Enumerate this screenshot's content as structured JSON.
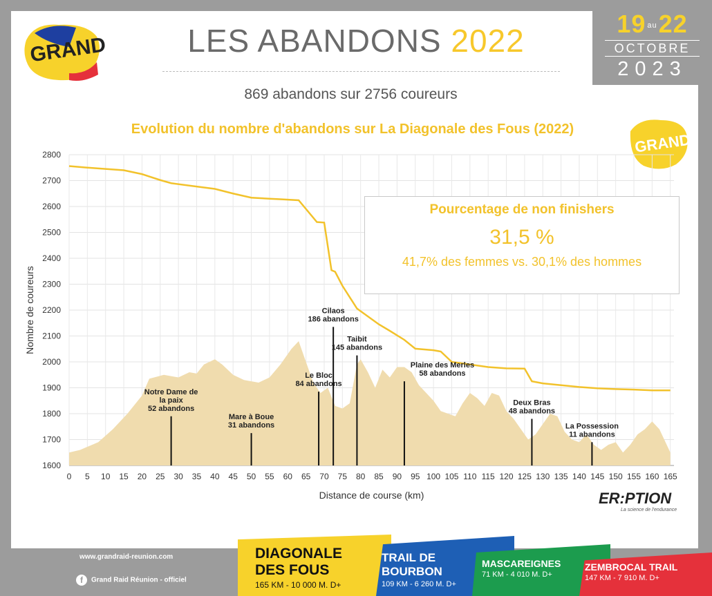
{
  "header": {
    "title_main": "LES ABANDONS",
    "title_year": "2022",
    "subtitle": "869 abandons sur 2756 coureurs",
    "logo_text": "GRAND RAID",
    "logo_small_text": "GRAND RAID",
    "date": {
      "day_start": "19",
      "au": "au",
      "day_end": "22",
      "month": "OCTOBRE",
      "year": "2023"
    }
  },
  "stats": {
    "title": "Pourcentage de non finishers",
    "value": "31,5 %",
    "detail": "41,7% des femmes  vs. 30,1% des hommes"
  },
  "chart_data": {
    "type": "line",
    "title": "Evolution du nombre d'abandons sur La Diagonale des Fous (2022)",
    "xlabel": "Distance de course (km)",
    "ylabel": "Nombre de coureurs",
    "xlim": [
      0,
      166
    ],
    "ylim": [
      1600,
      2800
    ],
    "x_ticks": [
      0,
      5,
      10,
      15,
      20,
      25,
      30,
      35,
      40,
      45,
      50,
      55,
      60,
      65,
      70,
      75,
      80,
      85,
      90,
      95,
      100,
      105,
      110,
      115,
      120,
      125,
      130,
      135,
      140,
      145,
      150,
      155,
      160,
      165
    ],
    "y_ticks": [
      1600,
      1700,
      1800,
      1900,
      2000,
      2100,
      2200,
      2300,
      2400,
      2500,
      2600,
      2700,
      2800
    ],
    "grid": true,
    "series": [
      {
        "x": [
          0,
          5,
          10,
          15,
          20,
          25,
          28,
          35,
          40,
          45,
          50,
          55,
          58,
          63,
          68,
          70,
          72,
          73,
          75,
          79,
          85,
          88,
          92,
          95,
          100,
          102,
          105,
          110,
          115,
          120,
          125,
          127,
          130,
          135,
          140,
          145,
          150,
          155,
          160,
          165
        ],
        "y": [
          2756,
          2750,
          2745,
          2740,
          2725,
          2702,
          2690,
          2677,
          2668,
          2650,
          2634,
          2630,
          2628,
          2624,
          2540,
          2538,
          2354,
          2348,
          2294,
          2206,
          2145,
          2120,
          2085,
          2051,
          2045,
          2040,
          2000,
          1990,
          1980,
          1975,
          1974,
          1925,
          1917,
          1910,
          1903,
          1898,
          1895,
          1893,
          1890,
          1890
        ],
        "color": "#f2c22b"
      },
      {
        "x": [
          0,
          3,
          8,
          12,
          16,
          20,
          22,
          26,
          30,
          33,
          35,
          37,
          40,
          42,
          45,
          48,
          52,
          55,
          58,
          61,
          63,
          65,
          67,
          69,
          71,
          73,
          75,
          77,
          79,
          80,
          82,
          84,
          86,
          88,
          90,
          92,
          94,
          96,
          98,
          100,
          102,
          104,
          106,
          108,
          110,
          112,
          114,
          116,
          118,
          120,
          122,
          124,
          126,
          128,
          130,
          132,
          134,
          136,
          138,
          140,
          142,
          144,
          146,
          148,
          150,
          152,
          154,
          156,
          158,
          160,
          162,
          165
        ],
        "y": [
          1650,
          1660,
          1690,
          1740,
          1800,
          1870,
          1935,
          1950,
          1940,
          1960,
          1955,
          1990,
          2010,
          1990,
          1950,
          1930,
          1920,
          1940,
          1990,
          2050,
          2080,
          2000,
          1920,
          1880,
          1900,
          1830,
          1820,
          1840,
          1990,
          2010,
          1960,
          1900,
          1970,
          1940,
          1980,
          1980,
          1960,
          1910,
          1880,
          1850,
          1810,
          1800,
          1790,
          1840,
          1880,
          1860,
          1830,
          1880,
          1870,
          1810,
          1780,
          1740,
          1700,
          1720,
          1760,
          1800,
          1790,
          1730,
          1700,
          1690,
          1720,
          1680,
          1660,
          1680,
          1690,
          1650,
          1680,
          1720,
          1740,
          1770,
          1740,
          1650
        ],
        "color": "#f0dcae"
      }
    ],
    "annotations": [
      {
        "x": 28,
        "y_top": 1790,
        "label": "Notre Dame de",
        "label2": "la paix",
        "count": "52 abandons"
      },
      {
        "x": 50,
        "y_top": 1725,
        "label": "Mare à Boue",
        "label2": "",
        "count": "31 abandons"
      },
      {
        "x": 68.5,
        "y_top": 1885,
        "label": "Le Bloc",
        "label2": "",
        "count": "84 abandons"
      },
      {
        "x": 72.5,
        "y_top": 2135,
        "label": "Cilaos",
        "label2": "",
        "count": "186 abandons"
      },
      {
        "x": 79,
        "y_top": 2025,
        "label": "Taibit",
        "label2": "",
        "count": "145 abandons"
      },
      {
        "x": 92,
        "y_top": 1925,
        "label": "Plaine des Merles",
        "label2": "",
        "count": "58 abandons"
      },
      {
        "x": 127,
        "y_top": 1780,
        "label": "Deux Bras",
        "label2": "",
        "count": "48 abandons"
      },
      {
        "x": 143.5,
        "y_top": 1690,
        "label": "La Possession",
        "label2": "",
        "count": "11 abandons"
      }
    ]
  },
  "eruption": {
    "name": "ER:PTION",
    "tagline": "La science de l'endurance"
  },
  "footer": {
    "website": "www.grandraid-reunion.com",
    "facebook_icon": "f",
    "facebook": "Grand Raid Réunion - officiel"
  },
  "races": [
    {
      "name": "DIAGONALE",
      "name2": "DES FOUS",
      "details": "165 KM - 10 000 M. D+",
      "color": "#f7d22b"
    },
    {
      "name": "TRAIL DE",
      "name2": "BOURBON",
      "details": "109 KM - 6 260 M. D+",
      "color": "#1e5fb5"
    },
    {
      "name": "MASCAREIGNES",
      "name2": "",
      "details": "71 KM - 4 010 M. D+",
      "color": "#1c9c4e"
    },
    {
      "name": "ZEMBROCAL TRAIL",
      "name2": "",
      "details": "147 KM - 7 910 M. D+",
      "color": "#e5313b"
    }
  ]
}
